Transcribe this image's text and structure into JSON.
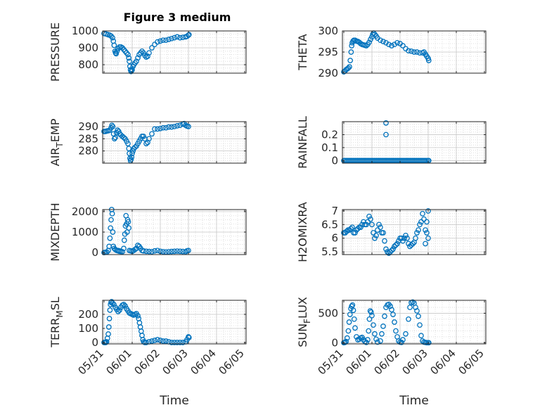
{
  "figure": {
    "title": "Figure 3 medium",
    "marker_color": "#0072BD",
    "x_ticks": [
      "05/31",
      "06/01",
      "06/02",
      "06/03",
      "06/04",
      "06/05"
    ]
  },
  "chart_data": [
    {
      "type": "scatter",
      "ylabel": "PRESSURE",
      "ylim": [
        750,
        1000
      ],
      "yticks": [
        800,
        900,
        1000
      ],
      "xlabel": "",
      "grid": true,
      "series": [
        {
          "x": [
            0.0,
            0.07,
            0.14,
            0.2,
            0.25,
            0.3,
            0.33,
            0.36,
            0.39,
            0.41,
            0.43,
            0.46,
            0.5,
            0.55,
            0.6,
            0.65,
            0.7,
            0.75,
            0.8,
            0.85,
            0.88,
            0.9,
            0.92,
            0.94,
            0.96,
            0.98,
            1.0,
            1.03,
            1.06,
            1.1,
            1.15,
            1.2,
            1.25,
            1.3,
            1.35,
            1.4,
            1.45,
            1.5,
            1.55,
            1.6,
            1.7,
            1.8,
            1.9,
            2.0,
            2.1,
            2.2,
            2.3,
            2.4,
            2.5,
            2.6,
            2.7,
            2.8,
            2.9,
            2.95,
            3.0,
            3.02
          ],
          "y": [
            985,
            982,
            978,
            975,
            970,
            960,
            940,
            915,
            880,
            870,
            865,
            880,
            895,
            905,
            905,
            900,
            890,
            880,
            870,
            860,
            840,
            820,
            790,
            770,
            760,
            765,
            770,
            790,
            800,
            810,
            820,
            840,
            860,
            870,
            880,
            870,
            855,
            845,
            850,
            870,
            900,
            920,
            935,
            940,
            945,
            945,
            950,
            955,
            960,
            965,
            960,
            962,
            965,
            968,
            975,
            978
          ]
        }
      ]
    },
    {
      "type": "scatter",
      "ylabel": "THETA",
      "ylim": [
        290,
        300
      ],
      "yticks": [
        290,
        295,
        300
      ],
      "xlabel": "",
      "grid": true,
      "series": [
        {
          "x": [
            0.0,
            0.04,
            0.08,
            0.12,
            0.16,
            0.2,
            0.23,
            0.26,
            0.28,
            0.3,
            0.33,
            0.36,
            0.4,
            0.45,
            0.5,
            0.55,
            0.6,
            0.65,
            0.7,
            0.75,
            0.8,
            0.85,
            0.9,
            0.95,
            1.0,
            1.03,
            1.06,
            1.1,
            1.15,
            1.2,
            1.3,
            1.4,
            1.5,
            1.6,
            1.7,
            1.8,
            1.9,
            2.0,
            2.1,
            2.2,
            2.3,
            2.4,
            2.5,
            2.6,
            2.7,
            2.8,
            2.85,
            2.9,
            2.95,
            3.0,
            3.02
          ],
          "y": [
            290.3,
            290.5,
            290.8,
            291.0,
            291.2,
            291.5,
            293.0,
            295.0,
            296.5,
            297.2,
            297.6,
            297.8,
            297.8,
            297.6,
            297.5,
            297.3,
            297.0,
            296.8,
            296.7,
            296.6,
            296.5,
            296.8,
            297.3,
            298.0,
            298.6,
            299.2,
            299.5,
            299.2,
            298.8,
            298.3,
            297.8,
            297.5,
            297.2,
            296.8,
            296.5,
            296.8,
            297.2,
            297.0,
            296.5,
            295.8,
            295.3,
            295.2,
            295.0,
            295.0,
            294.8,
            294.8,
            295.0,
            294.5,
            294.0,
            293.5,
            293.0
          ]
        }
      ]
    },
    {
      "type": "scatter",
      "ylabel": "AIR_TEMP",
      "ylim": [
        275,
        292
      ],
      "yticks": [
        280,
        285,
        290
      ],
      "xlabel": "",
      "grid": true,
      "series": [
        {
          "x": [
            0.0,
            0.05,
            0.1,
            0.15,
            0.2,
            0.25,
            0.28,
            0.31,
            0.34,
            0.37,
            0.4,
            0.44,
            0.48,
            0.52,
            0.56,
            0.6,
            0.65,
            0.7,
            0.75,
            0.8,
            0.85,
            0.88,
            0.9,
            0.92,
            0.94,
            0.96,
            0.98,
            1.0,
            1.03,
            1.06,
            1.1,
            1.15,
            1.2,
            1.25,
            1.3,
            1.35,
            1.4,
            1.45,
            1.5,
            1.55,
            1.6,
            1.7,
            1.8,
            1.9,
            2.0,
            2.1,
            2.2,
            2.3,
            2.4,
            2.5,
            2.6,
            2.7,
            2.8,
            2.85,
            2.9,
            2.95,
            3.0
          ],
          "y": [
            288.0,
            288.0,
            288.2,
            288.3,
            288.5,
            289.5,
            290.5,
            290.0,
            287.0,
            285.0,
            285.5,
            287.5,
            288.5,
            288.0,
            287.0,
            286.5,
            286.0,
            285.5,
            285.0,
            284.0,
            283.0,
            281.0,
            279.0,
            277.0,
            276.0,
            276.5,
            277.5,
            279.0,
            280.0,
            281.0,
            281.5,
            282.0,
            283.0,
            284.0,
            285.0,
            286.0,
            286.0,
            285.0,
            283.0,
            283.5,
            285.0,
            287.0,
            289.0,
            289.0,
            289.2,
            289.5,
            289.5,
            289.8,
            289.8,
            290.0,
            290.3,
            290.5,
            291.0,
            291.2,
            290.5,
            290.2,
            290.0
          ]
        }
      ]
    },
    {
      "type": "scatter",
      "ylabel": "RAINFALL",
      "ylim": [
        -0.02,
        0.3
      ],
      "yticks": [
        0,
        0.1,
        0.2
      ],
      "xlabel": "",
      "grid": true,
      "series": [
        {
          "x": [
            0.0,
            0.05,
            0.1,
            0.15,
            0.2,
            0.25,
            0.3,
            0.35,
            0.4,
            0.45,
            0.5,
            0.55,
            0.6,
            0.65,
            0.7,
            0.75,
            0.8,
            0.85,
            0.9,
            0.95,
            1.0,
            1.05,
            1.1,
            1.15,
            1.2,
            1.25,
            1.3,
            1.35,
            1.4,
            1.45,
            1.5,
            1.55,
            1.6,
            1.65,
            1.7,
            1.75,
            1.8,
            1.85,
            1.9,
            1.95,
            2.0,
            2.05,
            2.1,
            2.15,
            2.2,
            2.25,
            2.3,
            2.35,
            2.4,
            2.45,
            2.5,
            2.55,
            2.6,
            2.65,
            2.7,
            2.75,
            2.8,
            2.85,
            2.9,
            2.95,
            3.0,
            3.02,
            1.5,
            1.5
          ],
          "y": [
            0,
            0,
            0,
            0,
            0,
            0,
            0,
            0,
            0,
            0,
            0,
            0,
            0,
            0,
            0,
            0,
            0,
            0,
            0,
            0,
            0,
            0,
            0,
            0,
            0,
            0,
            0,
            0,
            0,
            0,
            0,
            0,
            0,
            0,
            0,
            0,
            0,
            0,
            0,
            0,
            0,
            0,
            0,
            0,
            0,
            0,
            0,
            0,
            0,
            0,
            0,
            0,
            0,
            0,
            0,
            0,
            0,
            0,
            0,
            0,
            0,
            0,
            0.29,
            0.2
          ]
        }
      ]
    },
    {
      "type": "scatter",
      "ylabel": "MIXDEPTH",
      "ylim": [
        -100,
        2100
      ],
      "yticks": [
        0,
        1000,
        2000
      ],
      "xlabel": "",
      "grid": true,
      "series": [
        {
          "x": [
            0.0,
            0.05,
            0.1,
            0.15,
            0.18,
            0.21,
            0.23,
            0.25,
            0.27,
            0.29,
            0.31,
            0.33,
            0.36,
            0.4,
            0.45,
            0.5,
            0.55,
            0.6,
            0.65,
            0.7,
            0.72,
            0.74,
            0.76,
            0.78,
            0.8,
            0.82,
            0.84,
            0.86,
            0.88,
            0.9,
            0.95,
            1.0,
            1.05,
            1.1,
            1.15,
            1.2,
            1.25,
            1.3,
            1.35,
            1.4,
            1.5,
            1.6,
            1.7,
            1.8,
            1.9,
            2.0,
            2.1,
            2.2,
            2.3,
            2.4,
            2.5,
            2.6,
            2.7,
            2.8,
            2.9,
            2.95,
            3.0,
            0.5,
            0.55
          ],
          "y": [
            0,
            10,
            20,
            100,
            300,
            700,
            1200,
            1600,
            2100,
            1900,
            1000,
            300,
            200,
            150,
            100,
            80,
            60,
            50,
            40,
            200,
            600,
            900,
            1300,
            1800,
            1400,
            1000,
            1600,
            1500,
            1200,
            100,
            80,
            60,
            100,
            150,
            200,
            350,
            300,
            200,
            100,
            80,
            60,
            50,
            40,
            80,
            100,
            60,
            40,
            30,
            40,
            50,
            60,
            70,
            60,
            50,
            40,
            80,
            100,
            100,
            80
          ]
        }
      ]
    },
    {
      "type": "scatter",
      "ylabel": "H2OMIXRA",
      "ylim": [
        5.4,
        7.05
      ],
      "yticks": [
        5.5,
        6,
        6.5,
        7
      ],
      "xlabel": "",
      "grid": true,
      "series": [
        {
          "x": [
            0.0,
            0.05,
            0.1,
            0.15,
            0.2,
            0.25,
            0.3,
            0.35,
            0.4,
            0.45,
            0.5,
            0.55,
            0.6,
            0.65,
            0.7,
            0.75,
            0.8,
            0.85,
            0.9,
            0.95,
            1.0,
            1.05,
            1.1,
            1.15,
            1.2,
            1.25,
            1.3,
            1.35,
            1.4,
            1.45,
            1.5,
            1.55,
            1.6,
            1.65,
            1.7,
            1.75,
            1.8,
            1.85,
            1.9,
            1.95,
            2.0,
            2.05,
            2.1,
            2.15,
            2.2,
            2.25,
            2.3,
            2.35,
            2.4,
            2.45,
            2.5,
            2.55,
            2.6,
            2.65,
            2.7,
            2.75,
            2.8,
            2.85,
            2.9,
            2.95,
            3.0,
            2.9,
            2.95,
            3.0
          ],
          "y": [
            6.2,
            6.2,
            6.25,
            6.3,
            6.3,
            6.35,
            6.4,
            6.2,
            6.2,
            6.3,
            6.35,
            6.4,
            6.4,
            6.5,
            6.6,
            6.5,
            6.5,
            6.6,
            6.8,
            6.7,
            6.5,
            6.2,
            6.0,
            6.1,
            6.3,
            6.5,
            6.4,
            6.2,
            6.2,
            5.9,
            5.6,
            5.5,
            5.45,
            5.5,
            5.55,
            5.6,
            5.7,
            5.75,
            5.8,
            5.9,
            6.0,
            6.0,
            5.9,
            6.0,
            6.1,
            6.0,
            5.8,
            5.7,
            5.75,
            5.8,
            5.85,
            6.0,
            6.2,
            6.3,
            6.5,
            6.6,
            6.9,
            6.7,
            6.3,
            6.2,
            6.0,
            5.8,
            6.6,
            7.0
          ]
        }
      ]
    },
    {
      "type": "scatter",
      "ylabel": "TERR_MSL",
      "ylim": [
        -10,
        300
      ],
      "yticks": [
        0,
        100,
        200
      ],
      "xlabel": "Time",
      "grid": true,
      "series": [
        {
          "x": [
            0.0,
            0.03,
            0.06,
            0.09,
            0.12,
            0.15,
            0.17,
            0.19,
            0.21,
            0.23,
            0.25,
            0.27,
            0.3,
            0.35,
            0.4,
            0.45,
            0.5,
            0.55,
            0.6,
            0.65,
            0.7,
            0.75,
            0.8,
            0.85,
            0.9,
            0.95,
            1.0,
            1.05,
            1.1,
            1.15,
            1.2,
            1.23,
            1.26,
            1.29,
            1.32,
            1.35,
            1.38,
            1.41,
            1.45,
            1.5,
            1.6,
            1.7,
            1.8,
            1.9,
            2.0,
            2.1,
            2.2,
            2.3,
            2.4,
            2.5,
            2.6,
            2.7,
            2.8,
            2.9,
            2.95,
            3.0,
            3.02
          ],
          "y": [
            0,
            0,
            0,
            5,
            30,
            60,
            110,
            170,
            230,
            270,
            285,
            290,
            280,
            270,
            250,
            235,
            220,
            230,
            250,
            265,
            270,
            260,
            240,
            225,
            210,
            205,
            200,
            195,
            200,
            205,
            190,
            170,
            140,
            110,
            80,
            50,
            20,
            5,
            0,
            0,
            5,
            10,
            15,
            20,
            15,
            10,
            10,
            5,
            0,
            0,
            0,
            0,
            0,
            5,
            20,
            40,
            35
          ]
        }
      ]
    },
    {
      "type": "scatter",
      "ylabel": "SUN_FLUX",
      "ylim": [
        -20,
        720
      ],
      "yticks": [
        0,
        500
      ],
      "xlabel": "Time",
      "grid": true,
      "series": [
        {
          "x": [
            0.0,
            0.04,
            0.08,
            0.12,
            0.16,
            0.19,
            0.22,
            0.25,
            0.28,
            0.31,
            0.34,
            0.37,
            0.4,
            0.45,
            0.5,
            0.55,
            0.6,
            0.65,
            0.7,
            0.75,
            0.8,
            0.85,
            0.88,
            0.91,
            0.94,
            0.97,
            1.0,
            1.05,
            1.1,
            1.15,
            1.2,
            1.3,
            1.35,
            1.4,
            1.45,
            1.5,
            1.55,
            1.6,
            1.65,
            1.7,
            1.75,
            1.8,
            1.85,
            1.9,
            1.95,
            2.0,
            2.05,
            2.1,
            2.2,
            2.3,
            2.35,
            2.4,
            2.45,
            2.5,
            2.55,
            2.6,
            2.65,
            2.7,
            2.75,
            2.8,
            2.85,
            2.9,
            2.95,
            3.0,
            3.02
          ],
          "y": [
            0,
            5,
            20,
            80,
            200,
            350,
            480,
            580,
            620,
            640,
            550,
            400,
            250,
            100,
            50,
            60,
            80,
            90,
            50,
            20,
            5,
            50,
            200,
            400,
            540,
            520,
            460,
            300,
            150,
            60,
            10,
            30,
            150,
            280,
            450,
            600,
            640,
            650,
            620,
            560,
            480,
            350,
            200,
            100,
            30,
            10,
            5,
            50,
            150,
            400,
            600,
            680,
            690,
            670,
            600,
            540,
            450,
            300,
            120,
            30,
            10,
            5,
            0,
            0,
            0
          ]
        }
      ]
    }
  ]
}
